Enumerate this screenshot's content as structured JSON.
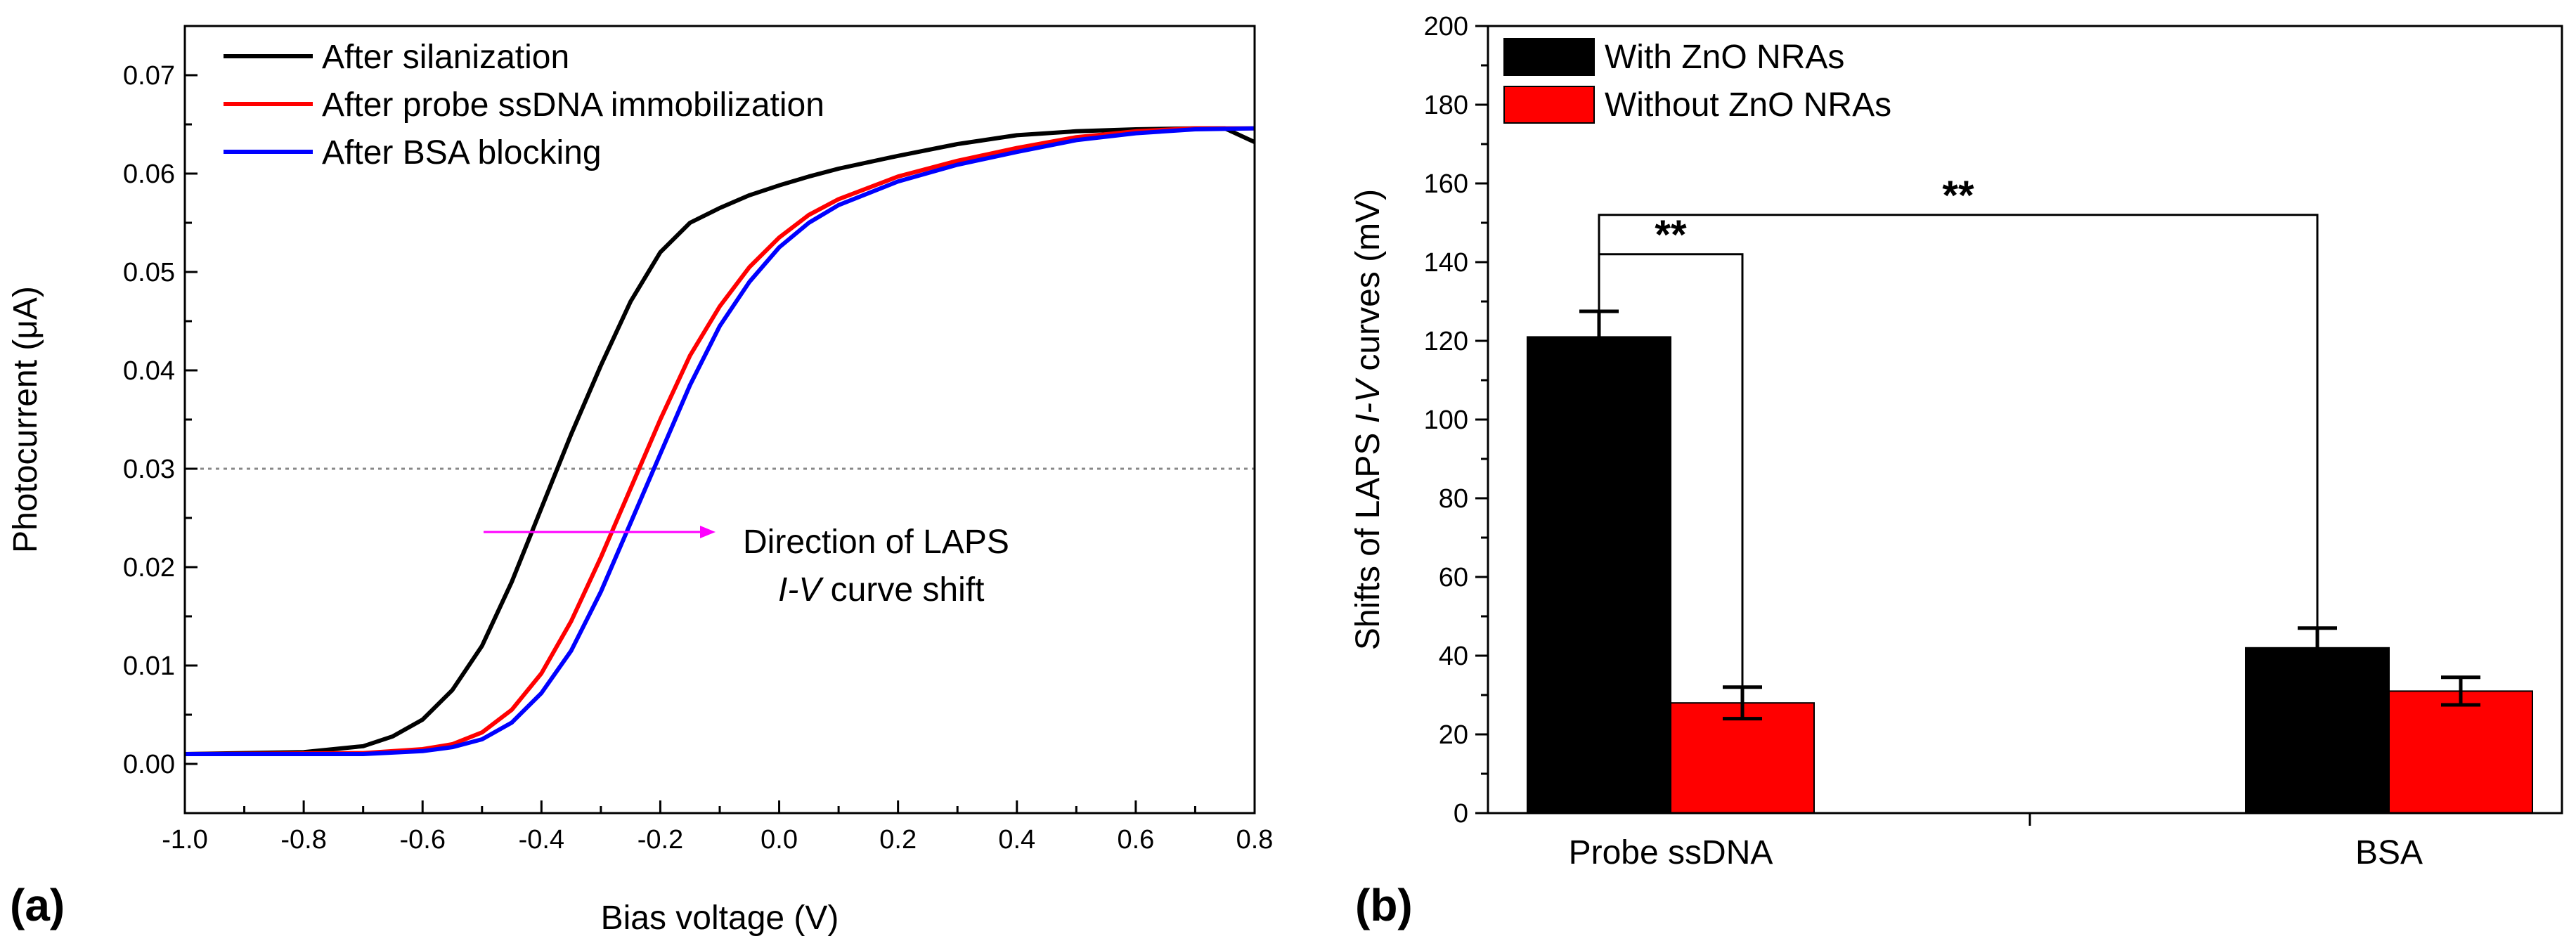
{
  "chart_data": [
    {
      "panel_label": "(a)",
      "type": "line",
      "xlabel": "Bias voltage (V)",
      "ylabel": "Photocurrent (μA)",
      "xlim": [
        -1.0,
        0.8
      ],
      "ylim": [
        -0.005,
        0.075
      ],
      "xticks": [
        "-1.0",
        "-0.8",
        "-0.6",
        "-0.4",
        "-0.2",
        "0.0",
        "0.2",
        "0.4",
        "0.6",
        "0.8"
      ],
      "yticks": [
        "0.00",
        "0.01",
        "0.02",
        "0.03",
        "0.04",
        "0.05",
        "0.06",
        "0.07"
      ],
      "reference_line": {
        "y": 0.03,
        "style": "dotted"
      },
      "annotation": {
        "line1": "Direction of LAPS",
        "line2_italic": "I-V",
        "line2_rest": " curve shift"
      },
      "series": [
        {
          "name": "After silanization",
          "color": "#000000",
          "x": [
            -1.0,
            -0.8,
            -0.7,
            -0.65,
            -0.6,
            -0.55,
            -0.5,
            -0.45,
            -0.4,
            -0.35,
            -0.3,
            -0.25,
            -0.2,
            -0.15,
            -0.1,
            -0.05,
            0.0,
            0.05,
            0.1,
            0.2,
            0.3,
            0.4,
            0.5,
            0.6,
            0.7,
            0.75,
            0.8
          ],
          "y": [
            0.001,
            0.0012,
            0.0018,
            0.0028,
            0.0045,
            0.0075,
            0.012,
            0.0185,
            0.026,
            0.0335,
            0.0405,
            0.047,
            0.052,
            0.055,
            0.0565,
            0.0578,
            0.0588,
            0.0597,
            0.0605,
            0.0618,
            0.063,
            0.0639,
            0.0643,
            0.0645,
            0.0646,
            0.0646,
            0.0632
          ]
        },
        {
          "name": "After probe ssDNA immobilization",
          "color": "#ff0000",
          "x": [
            -1.0,
            -0.7,
            -0.6,
            -0.55,
            -0.5,
            -0.45,
            -0.4,
            -0.35,
            -0.3,
            -0.25,
            -0.2,
            -0.15,
            -0.1,
            -0.05,
            0.0,
            0.05,
            0.1,
            0.2,
            0.3,
            0.4,
            0.5,
            0.6,
            0.7,
            0.8
          ],
          "y": [
            0.001,
            0.0011,
            0.0015,
            0.002,
            0.0032,
            0.0055,
            0.0092,
            0.0145,
            0.021,
            0.028,
            0.035,
            0.0415,
            0.0465,
            0.0505,
            0.0535,
            0.0558,
            0.0574,
            0.0597,
            0.0613,
            0.0626,
            0.0637,
            0.0643,
            0.0646,
            0.0646
          ]
        },
        {
          "name": "After BSA blocking",
          "color": "#0000ff",
          "x": [
            -1.0,
            -0.7,
            -0.6,
            -0.55,
            -0.5,
            -0.45,
            -0.4,
            -0.35,
            -0.3,
            -0.25,
            -0.2,
            -0.15,
            -0.1,
            -0.05,
            0.0,
            0.05,
            0.1,
            0.2,
            0.3,
            0.4,
            0.5,
            0.6,
            0.7,
            0.8
          ],
          "y": [
            0.001,
            0.001,
            0.0013,
            0.0017,
            0.0025,
            0.0042,
            0.0072,
            0.0115,
            0.0175,
            0.0245,
            0.0315,
            0.0385,
            0.0445,
            0.049,
            0.0525,
            0.055,
            0.0568,
            0.0592,
            0.0609,
            0.0622,
            0.0634,
            0.0641,
            0.0645,
            0.0646
          ]
        }
      ]
    },
    {
      "panel_label": "(b)",
      "type": "bar",
      "ylabel_pre": "Shifts of LAPS ",
      "ylabel_italic": "I-V",
      "ylabel_post": " curves (mV)",
      "ylim": [
        0,
        200
      ],
      "yticks": [
        "0",
        "20",
        "40",
        "60",
        "80",
        "100",
        "120",
        "140",
        "160",
        "180",
        "200"
      ],
      "categories": [
        "Probe ssDNA",
        "BSA"
      ],
      "series": [
        {
          "name": "With ZnO NRAs",
          "color": "#000000",
          "values": [
            121,
            42
          ],
          "errors": [
            6.5,
            5
          ]
        },
        {
          "name": "Without ZnO NRAs",
          "color": "#ff0000",
          "values": [
            28,
            31
          ],
          "errors": [
            4,
            3.5
          ]
        }
      ],
      "significance": [
        {
          "label": "**",
          "from": "Probe ssDNA / With ZnO NRAs",
          "to": "Probe ssDNA / Without ZnO NRAs",
          "level": 142
        },
        {
          "label": "**",
          "from": "Probe ssDNA / With ZnO NRAs",
          "to": "BSA / With ZnO NRAs",
          "level": 152
        }
      ]
    }
  ]
}
